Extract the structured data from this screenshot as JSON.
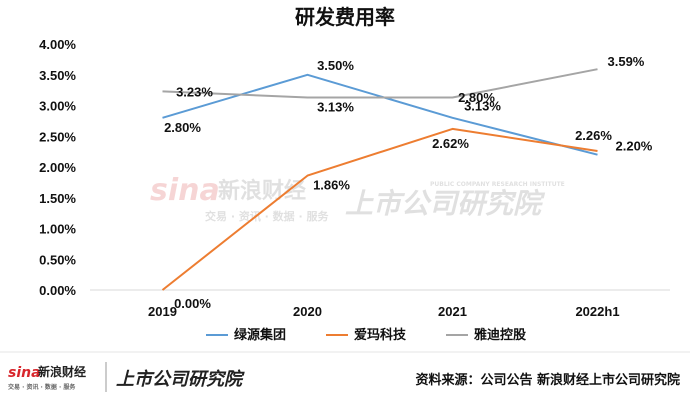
{
  "chart_data": {
    "type": "line",
    "title": "研发费用率",
    "categories": [
      "2019",
      "2020",
      "2021",
      "2022h1"
    ],
    "ylim": [
      0,
      4
    ],
    "y_ticks": [
      "0.00%",
      "0.50%",
      "1.00%",
      "1.50%",
      "2.00%",
      "2.50%",
      "3.00%",
      "3.50%",
      "4.00%"
    ],
    "grid": false,
    "legend_position": "bottom",
    "series": [
      {
        "name": "绿源集团",
        "values": [
          2.8,
          3.5,
          2.8,
          2.2
        ],
        "labels": [
          "2.80%",
          "3.50%",
          "2.80%",
          "2.20%"
        ],
        "color": "#5b9bd5"
      },
      {
        "name": "爱玛科技",
        "values": [
          0.0,
          1.86,
          2.62,
          2.26
        ],
        "labels": [
          "0.00%",
          "1.86%",
          "2.62%",
          "2.26%"
        ],
        "color": "#ed7d31"
      },
      {
        "name": "雅迪控股",
        "values": [
          3.23,
          3.13,
          3.13,
          3.59
        ],
        "labels": [
          "3.23%",
          "3.13%",
          "3.13%",
          "3.59%"
        ],
        "color": "#a5a5a5"
      }
    ]
  },
  "footer": {
    "source": "资料来源：公司公告 新浪财经上市公司研究院"
  },
  "watermark": {
    "sina": "sina",
    "brand": "新浪财经",
    "tags": "交易 · 资讯 · 数据 · 服务",
    "research": "上市公司研究院",
    "research_en": "PUBLIC COMPANY RESEARCH INSTITUTE"
  }
}
